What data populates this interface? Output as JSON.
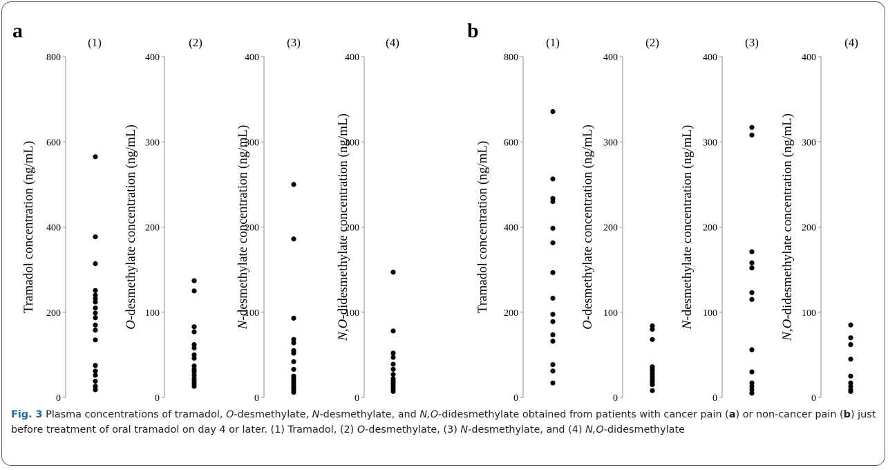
{
  "caption": {
    "fig_label": "Fig. 3",
    "html": " Plasma concentrations of tramadol, <i>O</i>-desmethylate, <i>N</i>-desmethylate, and <i>N,O</i>-didesmethylate obtained from patients with cancer pain (<b>a</b>) or non-cancer pain (<b>b</b>) just before treatment of oral tramadol on day 4 or later. (1) Tramadol, (2) <i>O</i>-desmethylate, (3) <i>N</i>-desmethylate, and (4) <i>N,O</i>-didesmethylate"
  },
  "chart_data": [
    {
      "type": "scatter",
      "panel": "a",
      "subplot": "(1)",
      "ylabel": "Tramadol concentration (ng/mL)",
      "ylim": [
        0,
        800
      ],
      "yticks": [
        0,
        200,
        400,
        600,
        800
      ],
      "values": [
        565,
        377,
        314,
        251,
        240,
        232,
        224,
        210,
        198,
        187,
        170,
        158,
        135,
        75,
        62,
        52,
        38,
        26,
        18
      ]
    },
    {
      "type": "scatter",
      "panel": "a",
      "subplot": "(2)",
      "ylabel": "<i>O</i>-desmethylate concentration (ng/mL)",
      "ylim": [
        0,
        400
      ],
      "yticks": [
        0,
        100,
        200,
        300,
        400
      ],
      "values": [
        137,
        125,
        83,
        77,
        62,
        58,
        50,
        46,
        37,
        33,
        30,
        26,
        22,
        19,
        16,
        13
      ]
    },
    {
      "type": "scatter",
      "panel": "a",
      "subplot": "(3)",
      "ylabel": "<i>N</i>-desmethylate concentration (ng/mL)",
      "ylim": [
        0,
        400
      ],
      "yticks": [
        0,
        100,
        200,
        300,
        400
      ],
      "values": [
        250,
        186,
        93,
        68,
        64,
        55,
        52,
        42,
        33,
        25,
        22,
        19,
        16,
        13,
        11,
        9,
        6
      ]
    },
    {
      "type": "scatter",
      "panel": "a",
      "subplot": "(4)",
      "ylabel": "<i>N,O</i>-didesmethylate concentration (ng/mL)",
      "ylim": [
        0,
        400
      ],
      "yticks": [
        0,
        100,
        200,
        300,
        400
      ],
      "values": [
        147,
        78,
        52,
        47,
        39,
        33,
        27,
        22,
        19,
        16,
        13,
        10,
        7
      ]
    },
    {
      "type": "scatter",
      "panel": "b",
      "subplot": "(1)",
      "ylabel": "Tramadol concentration (ng/mL)",
      "ylim": [
        0,
        800
      ],
      "yticks": [
        0,
        200,
        400,
        600,
        800
      ],
      "values": [
        671,
        513,
        467,
        460,
        397,
        363,
        293,
        233,
        195,
        178,
        147,
        132,
        77,
        62,
        34
      ]
    },
    {
      "type": "scatter",
      "panel": "b",
      "subplot": "(2)",
      "ylabel": "<i>O</i>-desmethylate concentration (ng/mL)",
      "ylim": [
        0,
        400
      ],
      "yticks": [
        0,
        100,
        200,
        300,
        400
      ],
      "values": [
        84,
        80,
        68,
        36,
        33,
        30,
        27,
        24,
        21,
        18,
        15,
        8
      ]
    },
    {
      "type": "scatter",
      "panel": "b",
      "subplot": "(3)",
      "ylabel": "<i>N</i>-desmethylate concentration (ng/mL)",
      "ylim": [
        0,
        400
      ],
      "yticks": [
        0,
        100,
        200,
        300,
        400
      ],
      "values": [
        317,
        308,
        171,
        158,
        152,
        123,
        115,
        56,
        30,
        17,
        13,
        9,
        5
      ]
    },
    {
      "type": "scatter",
      "panel": "b",
      "subplot": "(4)",
      "ylabel": "<i>N,O</i>-didesmethylate concentration (ng/mL)",
      "ylim": [
        0,
        400
      ],
      "yticks": [
        0,
        100,
        200,
        300,
        400
      ],
      "values": [
        85,
        70,
        62,
        45,
        25,
        17,
        13,
        9,
        7
      ]
    }
  ]
}
